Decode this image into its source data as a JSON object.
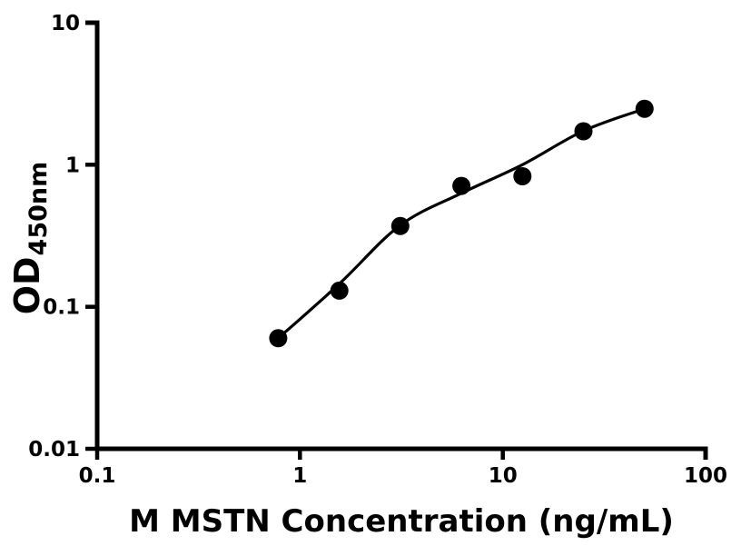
{
  "figure": {
    "background": "#ffffff",
    "ink_color": "#000000"
  },
  "chart_data": {
    "type": "scatter",
    "title": "",
    "xlabel": "M MSTN Concentration (ng/mL)",
    "ylabel_main": "OD",
    "ylabel_sub": "450nm",
    "x_scale": "log",
    "y_scale": "log",
    "xlim": [
      0.1,
      100
    ],
    "ylim": [
      0.01,
      10
    ],
    "grid": false,
    "legend": "none",
    "x_ticks": [
      {
        "value": 0.1,
        "label": "0.1"
      },
      {
        "value": 1,
        "label": "1"
      },
      {
        "value": 10,
        "label": "10"
      },
      {
        "value": 100,
        "label": "100"
      }
    ],
    "y_ticks": [
      {
        "value": 0.01,
        "label": "0.01"
      },
      {
        "value": 0.1,
        "label": "0.1"
      },
      {
        "value": 1,
        "label": "1"
      },
      {
        "value": 10,
        "label": "10"
      }
    ],
    "series": [
      {
        "name": "standard-fit-curve",
        "type": "line",
        "color": "#000000",
        "x": [
          0.781,
          1.563,
          3.125,
          6.25,
          12.5,
          25,
          50
        ],
        "y": [
          0.06,
          0.145,
          0.375,
          0.63,
          1.0,
          1.73,
          2.48
        ]
      },
      {
        "name": "standard-points",
        "type": "scatter",
        "marker": "circle",
        "marker_color": "#000000",
        "x": [
          0.781,
          1.563,
          3.125,
          6.25,
          12.5,
          25,
          50
        ],
        "y": [
          0.06,
          0.13,
          0.37,
          0.71,
          0.83,
          1.72,
          2.48
        ]
      }
    ]
  }
}
